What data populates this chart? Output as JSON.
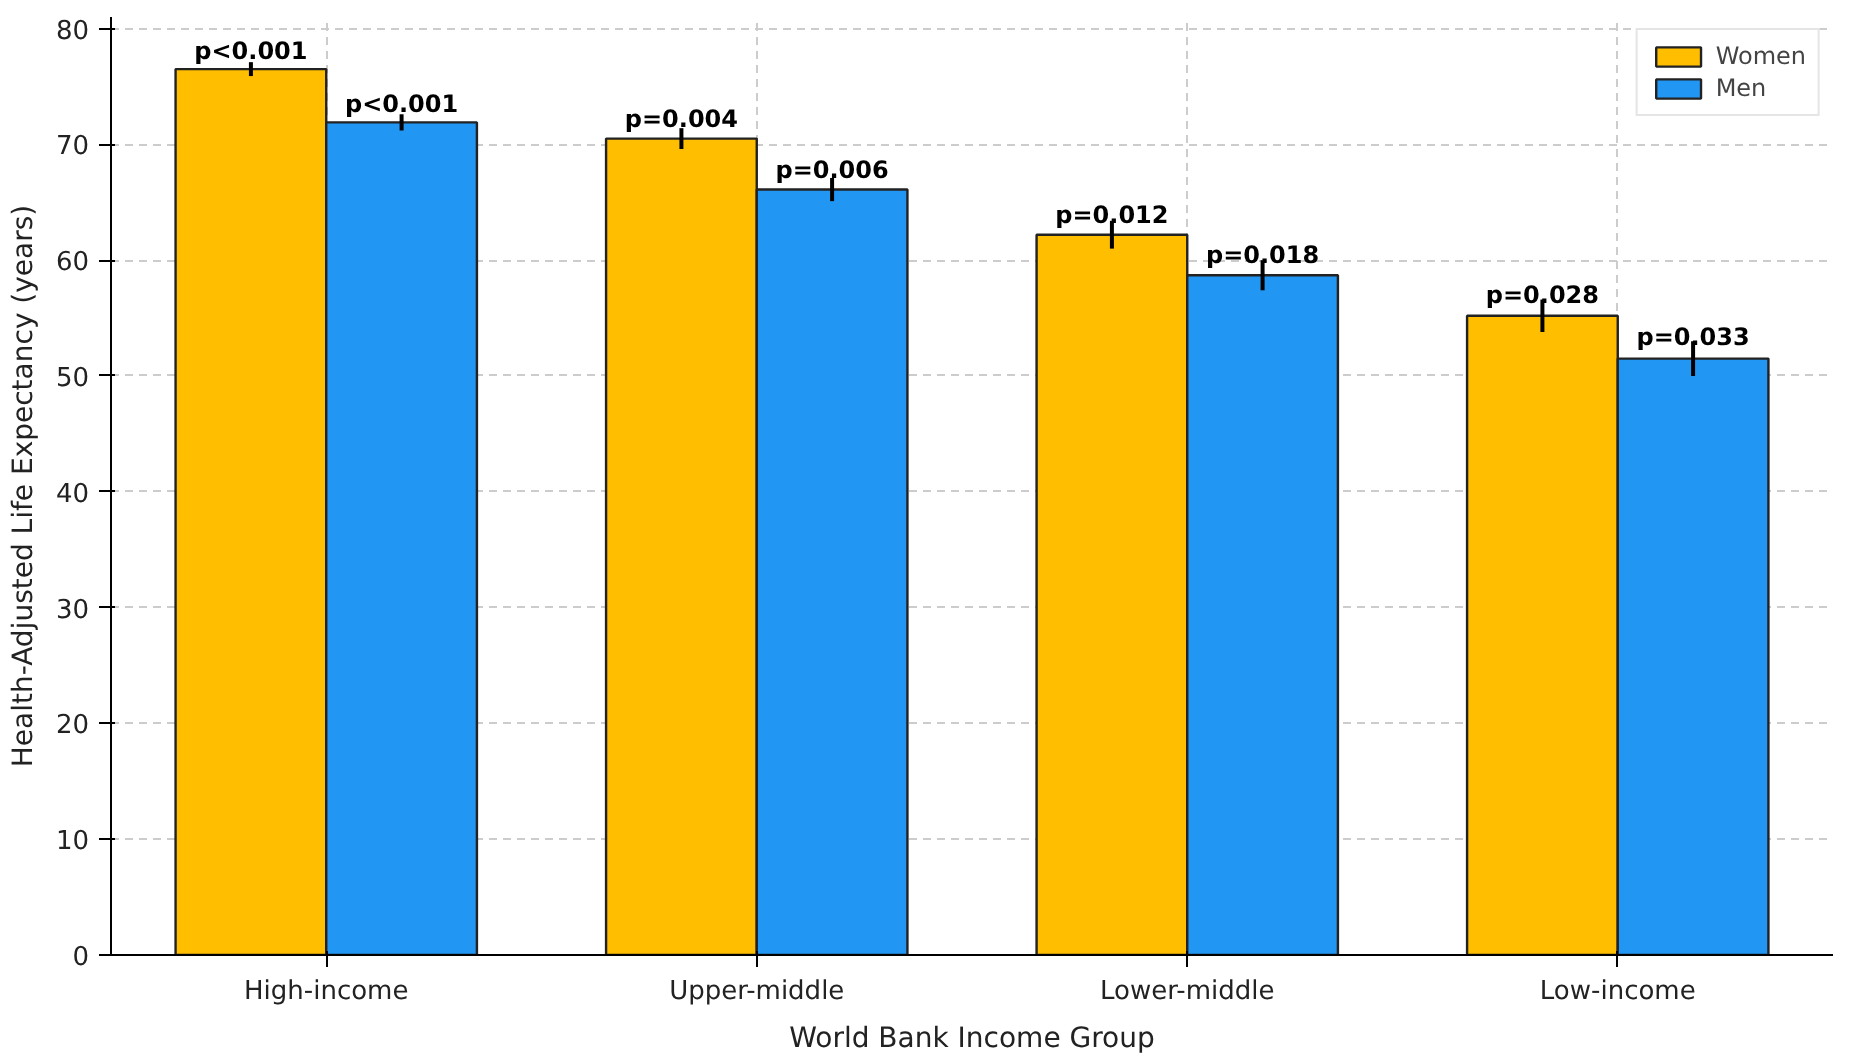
{
  "chart_data": {
    "type": "bar",
    "xlabel": "World Bank Income Group",
    "ylabel": "Health-Adjusted Life Expectancy (years)",
    "categories": [
      "High-income",
      "Upper-middle",
      "Lower-middle",
      "Low-income"
    ],
    "series": [
      {
        "name": "Women",
        "color": "#ffbf00",
        "values": [
          76.5,
          70.5,
          62.2,
          55.2
        ],
        "errors": [
          0.6,
          0.9,
          1.2,
          1.4
        ]
      },
      {
        "name": "Men",
        "color": "#2196f3",
        "values": [
          71.9,
          66.1,
          58.7,
          51.5
        ],
        "errors": [
          0.7,
          1.0,
          1.3,
          1.5
        ]
      }
    ],
    "annotations": [
      {
        "text": "p<0.001",
        "x": "High-income",
        "y": 76.5
      },
      {
        "text": "p<0.001",
        "x": "High-income",
        "y": 71.9
      },
      {
        "text": "p=0.004",
        "x": "Upper-middle",
        "y": 70.5
      },
      {
        "text": "p=0.006",
        "x": "Upper-middle",
        "y": 66.1
      },
      {
        "text": "p=0.012",
        "x": "Lower-middle",
        "y": 62.2
      },
      {
        "text": "p=0.018",
        "x": "Lower-middle",
        "y": 58.7
      },
      {
        "text": "p=0.028",
        "x": "Low-income",
        "y": 55.2
      },
      {
        "text": "p=0.033",
        "x": "Low-income",
        "y": 51.5
      }
    ],
    "ylim": [
      0,
      81
    ],
    "yticks": [
      0,
      10,
      20,
      30,
      40,
      50,
      60,
      70,
      80
    ],
    "grid": true,
    "legend": "top right"
  }
}
